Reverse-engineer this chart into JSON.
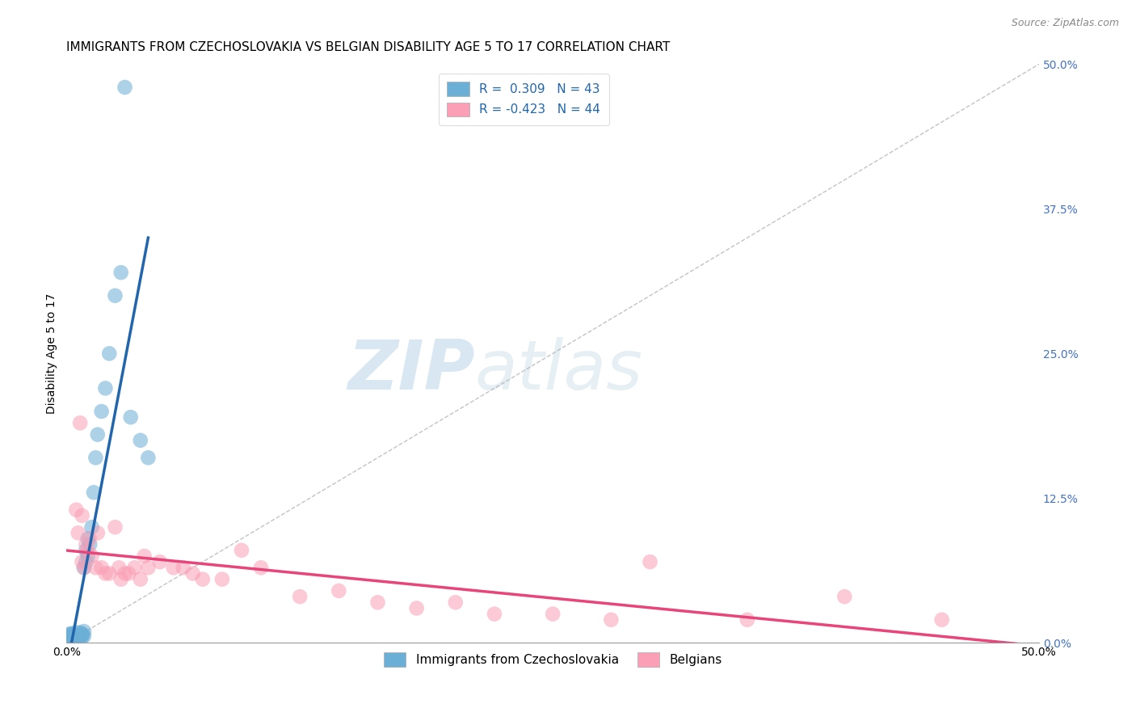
{
  "title": "IMMIGRANTS FROM CZECHOSLOVAKIA VS BELGIAN DISABILITY AGE 5 TO 17 CORRELATION CHART",
  "source": "Source: ZipAtlas.com",
  "xlabel": "",
  "ylabel": "Disability Age 5 to 17",
  "xmin": 0.0,
  "xmax": 0.5,
  "ymin": 0.0,
  "ymax": 0.5,
  "ytick_labels_right": [
    "0.0%",
    "12.5%",
    "25.0%",
    "37.5%",
    "50.0%"
  ],
  "ytick_positions": [
    0.0,
    0.125,
    0.25,
    0.375,
    0.5
  ],
  "legend_r1": "R =  0.309   N = 43",
  "legend_r2": "R = -0.423   N = 44",
  "blue_color": "#6baed6",
  "pink_color": "#fa9fb5",
  "blue_line_color": "#2166ac",
  "pink_line_color": "#e8457a",
  "blue_scatter_x": [
    0.001,
    0.002,
    0.002,
    0.003,
    0.003,
    0.003,
    0.004,
    0.004,
    0.004,
    0.005,
    0.005,
    0.005,
    0.005,
    0.006,
    0.006,
    0.006,
    0.007,
    0.007,
    0.007,
    0.008,
    0.008,
    0.008,
    0.009,
    0.009,
    0.009,
    0.01,
    0.01,
    0.011,
    0.011,
    0.012,
    0.013,
    0.014,
    0.015,
    0.016,
    0.018,
    0.02,
    0.022,
    0.025,
    0.028,
    0.03,
    0.033,
    0.038,
    0.042
  ],
  "blue_scatter_y": [
    0.007,
    0.006,
    0.008,
    0.005,
    0.006,
    0.008,
    0.005,
    0.006,
    0.007,
    0.004,
    0.005,
    0.006,
    0.009,
    0.005,
    0.006,
    0.007,
    0.005,
    0.006,
    0.009,
    0.005,
    0.007,
    0.008,
    0.006,
    0.065,
    0.01,
    0.07,
    0.08,
    0.075,
    0.09,
    0.085,
    0.1,
    0.13,
    0.16,
    0.18,
    0.2,
    0.22,
    0.25,
    0.3,
    0.32,
    0.48,
    0.195,
    0.175,
    0.16
  ],
  "pink_scatter_x": [
    0.005,
    0.006,
    0.007,
    0.008,
    0.008,
    0.009,
    0.01,
    0.011,
    0.012,
    0.013,
    0.015,
    0.016,
    0.018,
    0.02,
    0.022,
    0.025,
    0.027,
    0.028,
    0.03,
    0.032,
    0.035,
    0.038,
    0.04,
    0.042,
    0.048,
    0.055,
    0.06,
    0.065,
    0.07,
    0.08,
    0.09,
    0.1,
    0.12,
    0.14,
    0.16,
    0.18,
    0.2,
    0.22,
    0.25,
    0.28,
    0.3,
    0.35,
    0.4,
    0.45
  ],
  "pink_scatter_y": [
    0.115,
    0.095,
    0.19,
    0.07,
    0.11,
    0.065,
    0.085,
    0.08,
    0.09,
    0.075,
    0.065,
    0.095,
    0.065,
    0.06,
    0.06,
    0.1,
    0.065,
    0.055,
    0.06,
    0.06,
    0.065,
    0.055,
    0.075,
    0.065,
    0.07,
    0.065,
    0.065,
    0.06,
    0.055,
    0.055,
    0.08,
    0.065,
    0.04,
    0.045,
    0.035,
    0.03,
    0.035,
    0.025,
    0.025,
    0.02,
    0.07,
    0.02,
    0.04,
    0.02
  ],
  "watermark_zip": "ZIP",
  "watermark_atlas": "atlas",
  "title_fontsize": 11,
  "axis_label_fontsize": 10,
  "tick_fontsize": 10,
  "legend_fontsize": 11,
  "background_color": "#ffffff",
  "grid_color": "#cccccc"
}
